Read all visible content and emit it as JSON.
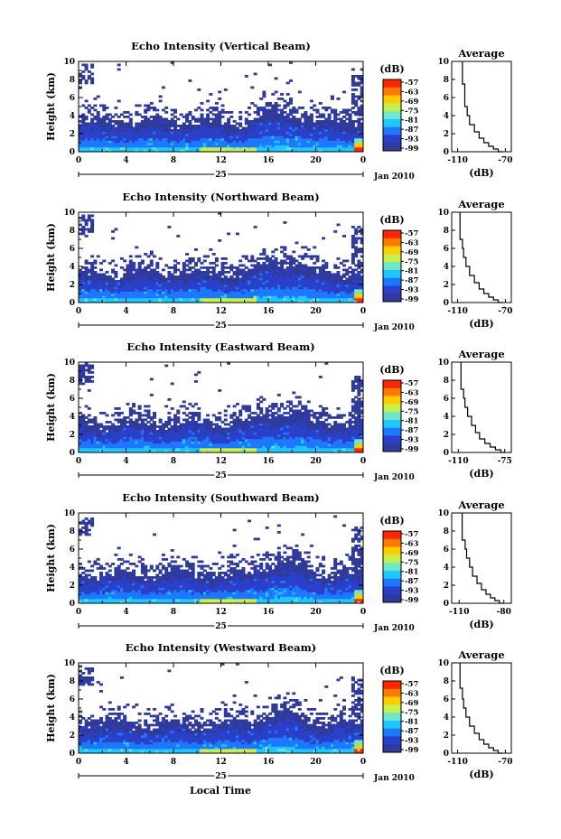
{
  "figure": {
    "common_xlabel": "Local Time",
    "date_label": "Jan 2010",
    "day_label": "25"
  },
  "colorbar": {
    "unit": "(dB)",
    "ticks": [
      "-57",
      "-63",
      "-69",
      "-75",
      "-81",
      "-87",
      "-93",
      "-99"
    ],
    "colors": [
      "#ff2600",
      "#ff7a00",
      "#ffcc00",
      "#c8f04a",
      "#6ee8c8",
      "#1ec8ff",
      "#1e78ff",
      "#2a40c8",
      "#303a9a"
    ]
  },
  "chart_data": [
    {
      "type": "heatmap",
      "title": "Echo Intensity (Vertical Beam)",
      "ylabel": "Height (km)",
      "xticks": [
        "0",
        "4",
        "8",
        "12",
        "16",
        "20",
        "0"
      ],
      "yticks": [
        "0",
        "2",
        "4",
        "6",
        "8",
        "10"
      ],
      "xlim": [
        0,
        24
      ],
      "ylim": [
        0,
        10
      ],
      "zlim": [
        -99,
        -57
      ],
      "profile": {
        "title": "Average",
        "xlabel": "(dB)",
        "xticks": [
          "-110",
          "-70"
        ],
        "xlim": [
          -115,
          -65
        ],
        "ylim": [
          0,
          10
        ],
        "x": [
          -106,
          -106,
          -104,
          -104,
          -102,
          -100,
          -96,
          -92,
          -88,
          -84,
          -80,
          -76,
          -72
        ],
        "y": [
          10,
          8.4,
          7.5,
          6.2,
          5.0,
          4.0,
          3.0,
          2.2,
          1.5,
          1.0,
          0.6,
          0.3,
          0
        ]
      }
    },
    {
      "type": "heatmap",
      "title": "Echo Intensity (Northward Beam)",
      "ylabel": "Height (km)",
      "xticks": [
        "0",
        "4",
        "8",
        "12",
        "16",
        "20",
        "0"
      ],
      "yticks": [
        "0",
        "2",
        "4",
        "6",
        "8",
        "10"
      ],
      "xlim": [
        0,
        24
      ],
      "ylim": [
        0,
        10
      ],
      "zlim": [
        -99,
        -57
      ],
      "profile": {
        "title": "Average",
        "xlabel": "(dB)",
        "xticks": [
          "-110",
          "-70"
        ],
        "xlim": [
          -115,
          -65
        ],
        "ylim": [
          0,
          10
        ],
        "x": [
          -108,
          -108,
          -106,
          -105,
          -103,
          -100,
          -96,
          -92,
          -88,
          -84,
          -80,
          -76,
          -72
        ],
        "y": [
          10,
          8.2,
          7.0,
          6.0,
          5.0,
          4.0,
          3.0,
          2.2,
          1.5,
          1.0,
          0.6,
          0.3,
          0
        ]
      }
    },
    {
      "type": "heatmap",
      "title": "Echo Intensity (Eastward Beam)",
      "ylabel": "Height (km)",
      "xticks": [
        "0",
        "4",
        "8",
        "12",
        "16",
        "20",
        "0"
      ],
      "yticks": [
        "0",
        "2",
        "4",
        "6",
        "8",
        "10"
      ],
      "xlim": [
        0,
        24
      ],
      "ylim": [
        0,
        10
      ],
      "zlim": [
        -99,
        -57
      ],
      "profile": {
        "title": "Average",
        "xlabel": "(dB)",
        "xticks": [
          "-110",
          "-75"
        ],
        "xlim": [
          -115,
          -70
        ],
        "ylim": [
          0,
          10
        ],
        "x": [
          -108,
          -108,
          -106,
          -105,
          -103,
          -100,
          -97,
          -94,
          -90,
          -86,
          -82,
          -78,
          -75
        ],
        "y": [
          10,
          8.2,
          7.0,
          6.0,
          5.0,
          4.0,
          3.0,
          2.2,
          1.5,
          1.0,
          0.6,
          0.3,
          0
        ]
      }
    },
    {
      "type": "heatmap",
      "title": "Echo Intensity (Southward Beam)",
      "ylabel": "Height (km)",
      "xticks": [
        "0",
        "4",
        "8",
        "12",
        "16",
        "20",
        "0"
      ],
      "yticks": [
        "0",
        "2",
        "4",
        "6",
        "8",
        "10"
      ],
      "xlim": [
        0,
        24
      ],
      "ylim": [
        0,
        10
      ],
      "zlim": [
        -99,
        -57
      ],
      "profile": {
        "title": "Average",
        "xlabel": "(dB)",
        "xticks": [
          "-110",
          "-80"
        ],
        "xlim": [
          -115,
          -75
        ],
        "ylim": [
          0,
          10
        ],
        "x": [
          -108,
          -108,
          -106,
          -105,
          -103,
          -101,
          -98,
          -95,
          -92,
          -89,
          -86,
          -83,
          -80
        ],
        "y": [
          10,
          8.4,
          7.0,
          6.0,
          5.0,
          4.0,
          3.0,
          2.2,
          1.5,
          1.0,
          0.6,
          0.3,
          0
        ]
      }
    },
    {
      "type": "heatmap",
      "title": "Echo Intensity (Westward Beam)",
      "ylabel": "Height (km)",
      "xticks": [
        "0",
        "4",
        "8",
        "12",
        "16",
        "20",
        "0"
      ],
      "yticks": [
        "0",
        "2",
        "4",
        "6",
        "8",
        "10"
      ],
      "xlim": [
        0,
        24
      ],
      "ylim": [
        0,
        10
      ],
      "zlim": [
        -99,
        -57
      ],
      "profile": {
        "title": "Average",
        "xlabel": "(dB)",
        "xticks": [
          "-110",
          "-70"
        ],
        "xlim": [
          -115,
          -65
        ],
        "ylim": [
          0,
          10
        ],
        "x": [
          -108,
          -108,
          -106,
          -105,
          -103,
          -100,
          -96,
          -92,
          -88,
          -84,
          -80,
          -76,
          -72
        ],
        "y": [
          10,
          8.4,
          7.2,
          6.0,
          5.0,
          4.0,
          3.0,
          2.2,
          1.5,
          1.0,
          0.6,
          0.3,
          0
        ]
      }
    }
  ]
}
